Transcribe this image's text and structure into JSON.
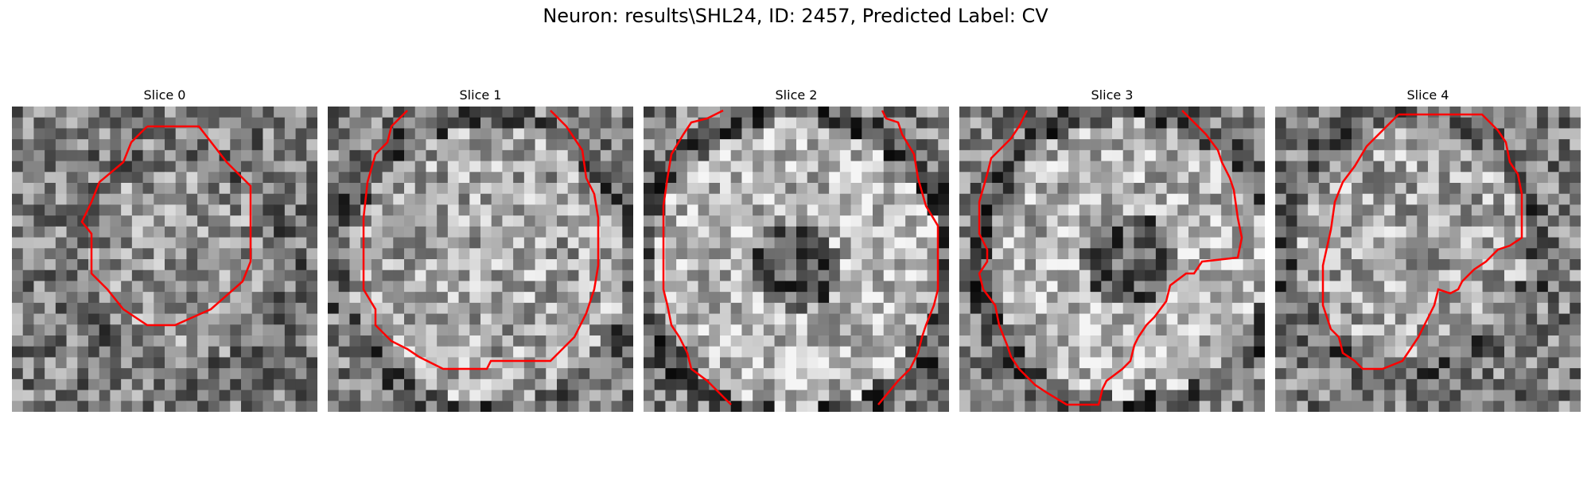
{
  "figure": {
    "title": "Neuron: results\\SHL24, ID: 2457, Predicted Label: CV"
  },
  "colors": {
    "contour": "#ff0000",
    "background": "#ffffff",
    "text": "#000000"
  },
  "panels": [
    {
      "title": "Slice 0"
    },
    {
      "title": "Slice 1"
    },
    {
      "title": "Slice 2"
    },
    {
      "title": "Slice 3"
    },
    {
      "title": "Slice 4"
    }
  ]
}
